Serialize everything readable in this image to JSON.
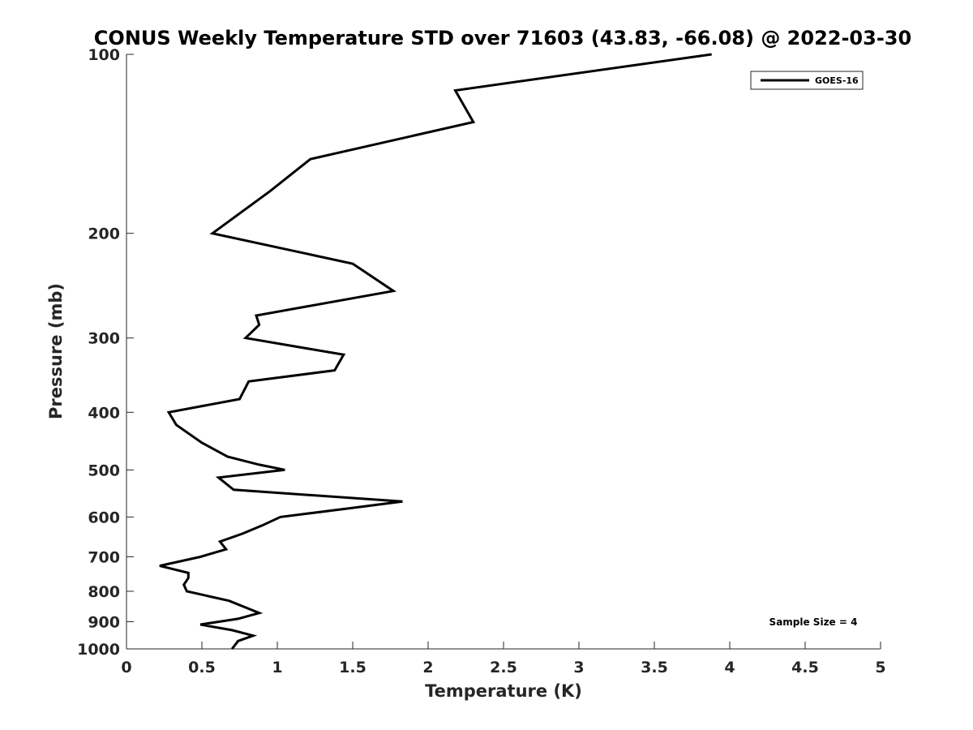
{
  "chart_data": {
    "type": "line",
    "title": "CONUS Weekly Temperature STD over 71603 (43.83, -66.08) @ 2022-03-30",
    "xlabel": "Temperature (K)",
    "ylabel": "Pressure (mb)",
    "xlim": [
      0,
      5
    ],
    "ylim": [
      100,
      1000
    ],
    "y_scale": "log",
    "y_reversed": true,
    "grid": false,
    "legend_position": "top-right",
    "x_ticks": [
      0,
      0.5,
      1,
      1.5,
      2,
      2.5,
      3,
      3.5,
      4,
      4.5,
      5
    ],
    "x_tick_labels": [
      "0",
      "0.5",
      "1",
      "1.5",
      "2",
      "2.5",
      "3",
      "3.5",
      "4",
      "4.5",
      "5"
    ],
    "y_ticks": [
      100,
      200,
      300,
      400,
      500,
      600,
      700,
      800,
      900,
      1000
    ],
    "y_tick_labels": [
      "100",
      "200",
      "300",
      "400",
      "500",
      "600",
      "700",
      "800",
      "900",
      "1000"
    ],
    "annotation": "Sample Size = 4",
    "series": [
      {
        "name": "GOES-16",
        "color": "#000000",
        "x": [
          3.88,
          2.18,
          2.3,
          1.22,
          0.95,
          0.57,
          1.5,
          1.77,
          0.86,
          0.88,
          0.79,
          1.44,
          1.38,
          0.81,
          0.75,
          0.28,
          0.33,
          0.5,
          0.67,
          0.88,
          1.05,
          0.61,
          0.71,
          1.83,
          1.48,
          1.02,
          0.9,
          0.77,
          0.62,
          0.66,
          0.49,
          0.22,
          0.41,
          0.41,
          0.38,
          0.4,
          0.68,
          0.88,
          0.74,
          0.49,
          0.7,
          0.84,
          0.74,
          0.72,
          0.7
        ],
        "y": [
          100,
          115,
          130,
          150,
          170,
          200,
          225,
          250,
          275,
          285,
          300,
          320,
          340,
          355,
          380,
          400,
          420,
          450,
          475,
          490,
          500,
          515,
          540,
          565,
          580,
          600,
          620,
          640,
          660,
          680,
          700,
          725,
          745,
          760,
          780,
          800,
          830,
          870,
          890,
          910,
          930,
          950,
          970,
          985,
          1000
        ]
      }
    ]
  }
}
